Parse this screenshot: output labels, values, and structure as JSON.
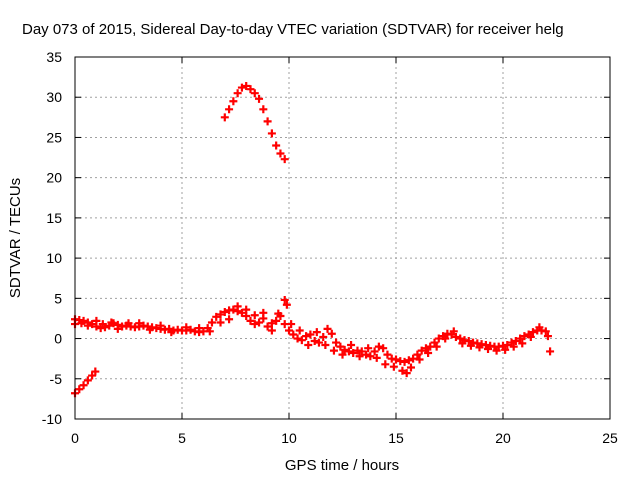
{
  "chart_data": {
    "type": "scatter",
    "title": "Day 073 of 2015, Sidereal Day-to-day VTEC variation (SDTVAR) for receiver helg",
    "xlabel": "GPS time / hours",
    "ylabel": "SDTVAR / TECUs",
    "xlim": [
      0,
      25
    ],
    "ylim": [
      -10,
      35
    ],
    "xticks": [
      0,
      5,
      10,
      15,
      20,
      25
    ],
    "yticks": [
      -10,
      -5,
      0,
      5,
      10,
      15,
      20,
      25,
      30,
      35
    ],
    "grid": true,
    "color": "#ff0000",
    "series": [
      {
        "name": "SDTVAR",
        "points": [
          [
            0.0,
            2.4
          ],
          [
            0.2,
            2.3
          ],
          [
            0.4,
            2.2
          ],
          [
            0.6,
            2.0
          ],
          [
            0.8,
            1.8
          ],
          [
            1.0,
            1.5
          ],
          [
            1.2,
            1.3
          ],
          [
            1.4,
            1.4
          ],
          [
            1.6,
            1.6
          ],
          [
            1.8,
            1.9
          ],
          [
            2.0,
            1.7
          ],
          [
            2.2,
            1.5
          ],
          [
            2.4,
            1.6
          ],
          [
            2.6,
            1.5
          ],
          [
            2.8,
            1.4
          ],
          [
            3.0,
            1.5
          ],
          [
            3.2,
            1.6
          ],
          [
            3.4,
            1.5
          ],
          [
            3.6,
            1.4
          ],
          [
            3.8,
            1.3
          ],
          [
            4.0,
            1.2
          ],
          [
            4.2,
            1.1
          ],
          [
            4.4,
            1.2
          ],
          [
            4.6,
            1.0
          ],
          [
            4.8,
            1.1
          ],
          [
            5.0,
            1.0
          ],
          [
            5.2,
            1.0
          ],
          [
            5.4,
            1.1
          ],
          [
            5.6,
            0.9
          ],
          [
            5.8,
            0.8
          ],
          [
            6.0,
            0.9
          ],
          [
            6.2,
            1.3
          ],
          [
            6.4,
            2.0
          ],
          [
            6.6,
            2.7
          ],
          [
            6.8,
            3.0
          ],
          [
            7.0,
            3.3
          ],
          [
            7.2,
            3.5
          ],
          [
            7.4,
            3.6
          ],
          [
            7.6,
            3.4
          ],
          [
            7.8,
            3.2
          ],
          [
            8.0,
            2.8
          ],
          [
            8.2,
            2.2
          ],
          [
            8.4,
            1.8
          ],
          [
            8.6,
            2.0
          ],
          [
            8.8,
            2.5
          ],
          [
            9.0,
            1.5
          ],
          [
            9.2,
            1.0
          ],
          [
            9.4,
            2.2
          ],
          [
            9.6,
            2.8
          ],
          [
            9.8,
            1.8
          ],
          [
            10.0,
            1.0
          ],
          [
            10.2,
            0.5
          ],
          [
            10.4,
            0.0
          ],
          [
            10.6,
            -0.2
          ],
          [
            10.8,
            0.3
          ],
          [
            11.0,
            0.5
          ],
          [
            11.2,
            -0.3
          ],
          [
            11.4,
            -0.5
          ],
          [
            11.6,
            0.2
          ],
          [
            11.8,
            1.2
          ],
          [
            12.0,
            0.6
          ],
          [
            12.2,
            -0.5
          ],
          [
            12.4,
            -1.0
          ],
          [
            12.6,
            -1.4
          ],
          [
            12.8,
            -1.6
          ],
          [
            13.0,
            -1.8
          ],
          [
            13.2,
            -1.5
          ],
          [
            13.4,
            -1.6
          ],
          [
            13.6,
            -2.0
          ],
          [
            13.8,
            -2.2
          ],
          [
            14.0,
            -1.6
          ],
          [
            14.2,
            -1.0
          ],
          [
            14.4,
            -1.2
          ],
          [
            14.6,
            -2.0
          ],
          [
            14.8,
            -2.5
          ],
          [
            15.0,
            -2.6
          ],
          [
            15.2,
            -2.8
          ],
          [
            15.4,
            -2.9
          ],
          [
            15.6,
            -2.7
          ],
          [
            15.8,
            -2.5
          ],
          [
            16.0,
            -2.0
          ],
          [
            16.2,
            -1.5
          ],
          [
            16.4,
            -1.2
          ],
          [
            16.6,
            -1.0
          ],
          [
            16.8,
            -0.5
          ],
          [
            17.0,
            0.0
          ],
          [
            17.2,
            0.3
          ],
          [
            17.4,
            0.6
          ],
          [
            17.6,
            0.5
          ],
          [
            17.8,
            0.2
          ],
          [
            18.0,
            0.0
          ],
          [
            18.2,
            -0.2
          ],
          [
            18.4,
            -0.3
          ],
          [
            18.6,
            -0.5
          ],
          [
            18.8,
            -0.6
          ],
          [
            19.0,
            -0.7
          ],
          [
            19.2,
            -0.8
          ],
          [
            19.4,
            -0.9
          ],
          [
            19.6,
            -1.0
          ],
          [
            19.8,
            -1.0
          ],
          [
            20.0,
            -0.9
          ],
          [
            20.2,
            -0.8
          ],
          [
            20.4,
            -0.5
          ],
          [
            20.6,
            -0.3
          ],
          [
            20.8,
            0.0
          ],
          [
            21.0,
            0.3
          ],
          [
            21.2,
            0.5
          ],
          [
            21.4,
            0.8
          ],
          [
            21.6,
            1.0
          ],
          [
            21.8,
            1.0
          ],
          [
            22.0,
            0.9
          ],
          [
            0.0,
            -6.8
          ],
          [
            0.2,
            -6.3
          ],
          [
            0.4,
            -5.8
          ],
          [
            0.6,
            -5.2
          ],
          [
            0.8,
            -4.6
          ],
          [
            0.95,
            -4.1
          ],
          [
            0.0,
            1.8
          ],
          [
            0.3,
            1.9
          ],
          [
            0.6,
            1.6
          ],
          [
            1.0,
            2.2
          ],
          [
            1.3,
            1.8
          ],
          [
            1.7,
            2.0
          ],
          [
            2.0,
            1.2
          ],
          [
            2.5,
            1.9
          ],
          [
            3.0,
            1.9
          ],
          [
            3.5,
            1.1
          ],
          [
            4.0,
            1.6
          ],
          [
            4.5,
            0.8
          ],
          [
            5.2,
            1.4
          ],
          [
            5.8,
            1.3
          ],
          [
            6.3,
            0.9
          ],
          [
            6.8,
            2.0
          ],
          [
            7.2,
            2.4
          ],
          [
            7.6,
            4.0
          ],
          [
            8.0,
            3.6
          ],
          [
            8.4,
            2.9
          ],
          [
            8.8,
            3.2
          ],
          [
            9.2,
            1.9
          ],
          [
            9.5,
            3.1
          ],
          [
            9.8,
            4.8
          ],
          [
            9.9,
            4.2
          ],
          [
            10.1,
            1.8
          ],
          [
            10.5,
            1.0
          ],
          [
            10.9,
            -0.8
          ],
          [
            11.3,
            0.8
          ],
          [
            11.7,
            -0.8
          ],
          [
            12.1,
            -1.5
          ],
          [
            12.5,
            -2.0
          ],
          [
            12.9,
            -0.8
          ],
          [
            13.3,
            -2.2
          ],
          [
            13.7,
            -1.2
          ],
          [
            14.1,
            -2.4
          ],
          [
            14.5,
            -3.2
          ],
          [
            14.9,
            -3.5
          ],
          [
            15.3,
            -4.0
          ],
          [
            15.5,
            -4.3
          ],
          [
            15.7,
            -3.6
          ],
          [
            16.1,
            -2.6
          ],
          [
            16.5,
            -1.8
          ],
          [
            16.9,
            -1.0
          ],
          [
            17.3,
            0.0
          ],
          [
            17.7,
            0.9
          ],
          [
            18.1,
            -0.6
          ],
          [
            18.5,
            -0.9
          ],
          [
            18.9,
            -1.1
          ],
          [
            19.3,
            -1.3
          ],
          [
            19.7,
            -1.5
          ],
          [
            20.1,
            -1.4
          ],
          [
            20.5,
            -1.0
          ],
          [
            20.9,
            -0.6
          ],
          [
            21.3,
            0.2
          ],
          [
            21.7,
            1.4
          ],
          [
            22.1,
            0.3
          ],
          [
            22.2,
            -1.6
          ],
          [
            7.0,
            27.5
          ],
          [
            7.2,
            28.5
          ],
          [
            7.4,
            29.5
          ],
          [
            7.6,
            30.5
          ],
          [
            7.8,
            31.2
          ],
          [
            8.0,
            31.4
          ],
          [
            8.2,
            31.0
          ],
          [
            8.4,
            30.5
          ],
          [
            8.6,
            29.8
          ],
          [
            8.8,
            28.5
          ],
          [
            9.0,
            27.0
          ],
          [
            9.2,
            25.5
          ],
          [
            9.4,
            24.0
          ],
          [
            9.6,
            23.0
          ],
          [
            9.8,
            22.3
          ]
        ]
      }
    ]
  }
}
